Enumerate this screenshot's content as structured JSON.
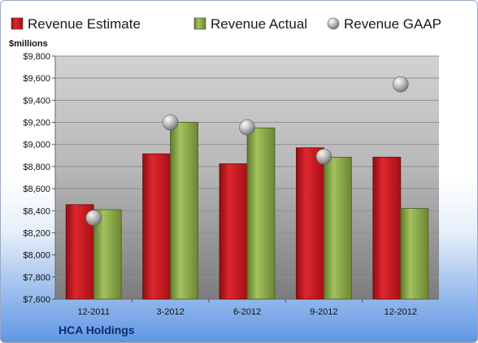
{
  "chart_data": {
    "type": "bar",
    "unit_label": "$millions",
    "categories": [
      "12-2011",
      "3-2012",
      "6-2012",
      "9-2012",
      "12-2012"
    ],
    "series": [
      {
        "name": "Revenue Estimate",
        "kind": "bar",
        "color": "#c8141c",
        "values": [
          8455,
          8915,
          8825,
          8970,
          8885
        ]
      },
      {
        "name": "Revenue Actual",
        "kind": "bar",
        "color": "#8fb04a",
        "values": [
          8410,
          9200,
          9150,
          8885,
          8420
        ]
      },
      {
        "name": "Revenue GAAP",
        "kind": "marker",
        "color": "#b8b8b8",
        "values": [
          8335,
          9200,
          9155,
          8890,
          9545
        ]
      }
    ],
    "ylim": [
      7600,
      9800
    ],
    "yticks": [
      "$7,600",
      "$7,800",
      "$8,000",
      "$8,200",
      "$8,400",
      "$8,600",
      "$8,800",
      "$9,000",
      "$9,200",
      "$9,400",
      "$9,600",
      "$9,800"
    ],
    "grid": true,
    "legend_position": "top"
  },
  "footer": {
    "company": "HCA Holdings"
  }
}
